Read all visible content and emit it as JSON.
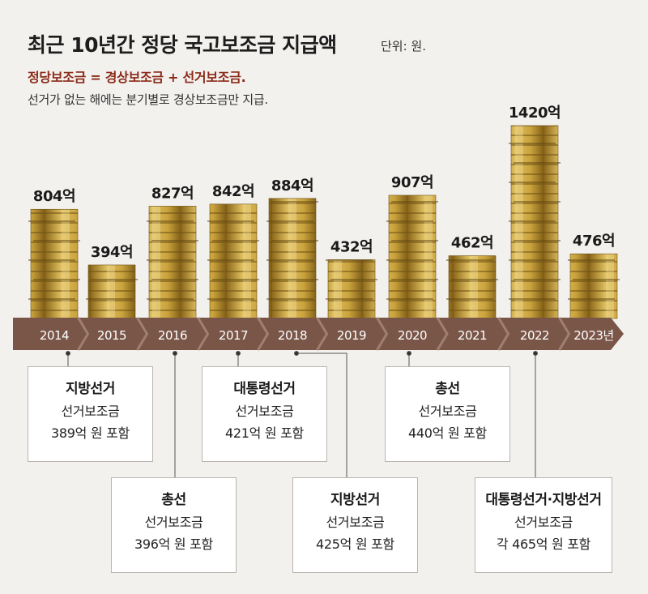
{
  "header": {
    "title": "최근 10년간 정당 국고보조금 지급액",
    "unit": "단위: 원.",
    "formula": "정당보조금 = 경상보조금 + 선거보조금.",
    "note": "선거가 없는 해에는 분기별로 경상보조금만 지급."
  },
  "chart_data": {
    "type": "bar",
    "categories": [
      "2014",
      "2015",
      "2016",
      "2017",
      "2018",
      "2019",
      "2020",
      "2021",
      "2022",
      "2023년"
    ],
    "values": [
      804,
      394,
      827,
      842,
      884,
      432,
      907,
      462,
      1420,
      476
    ],
    "value_labels": [
      "804억",
      "394억",
      "827억",
      "842억",
      "884억",
      "432억",
      "907억",
      "462억",
      "1420억",
      "476억"
    ],
    "colors": {
      "gold": "#c9a23c",
      "gold_dark": "#8d6a1c",
      "timeline": "#7a5648",
      "timeline_light": "#a07f72",
      "title_red": "#8a2a18"
    }
  },
  "annotations": [
    {
      "title": "지방선거",
      "line1": "선거보조금",
      "line2": "389억 원 포함"
    },
    {
      "title": "총선",
      "line1": "선거보조금",
      "line2": "396억 원 포함"
    },
    {
      "title": "대통령선거",
      "line1": "선거보조금",
      "line2": "421억 원 포함"
    },
    {
      "title": "지방선거",
      "line1": "선거보조금",
      "line2": "425억 원 포함"
    },
    {
      "title": "총선",
      "line1": "선거보조금",
      "line2": "440억 원 포함"
    },
    {
      "title": "대통령선거·지방선거",
      "line1": "선거보조금",
      "line2": "각 465억 원 포함"
    }
  ]
}
